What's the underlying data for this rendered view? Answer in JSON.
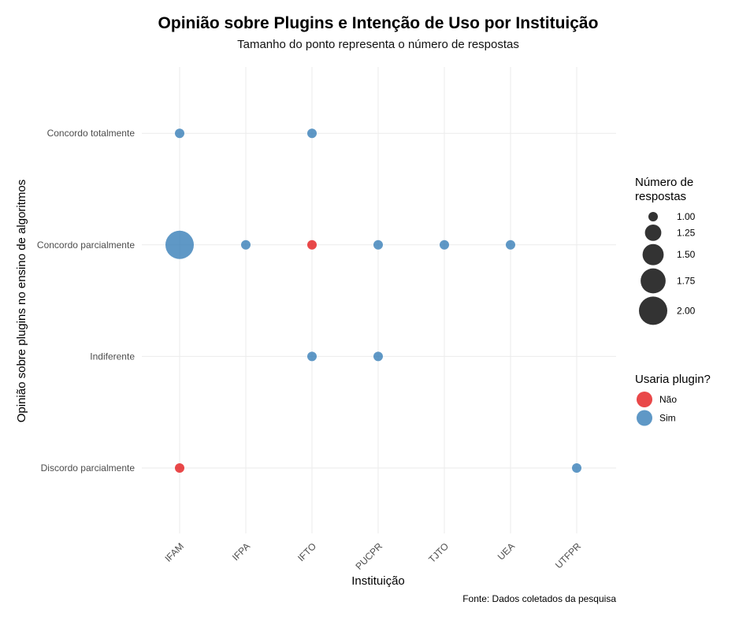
{
  "chart_data": {
    "type": "scatter",
    "title": "Opinião sobre Plugins e Intenção de Uso por Instituição",
    "subtitle": "Tamanho do ponto representa o número de respostas",
    "xlabel": "Instituição",
    "ylabel": "Opinião sobre plugins no ensino de algoritmos",
    "caption": "Fonte: Dados coletados da pesquisa",
    "grid": true,
    "x_categories": [
      "IFAM",
      "IFPA",
      "IFTO",
      "PUCPR",
      "TJTO",
      "UEA",
      "UTFPR"
    ],
    "y_categories": [
      "Discordo parcialmente",
      "Indiferente",
      "Concordo parcialmente",
      "Concordo totalmente"
    ],
    "points": [
      {
        "x": "IFAM",
        "y": "Concordo totalmente",
        "n": 1,
        "group": "Sim"
      },
      {
        "x": "IFTO",
        "y": "Concordo totalmente",
        "n": 1,
        "group": "Sim"
      },
      {
        "x": "IFAM",
        "y": "Concordo parcialmente",
        "n": 2,
        "group": "Sim"
      },
      {
        "x": "IFPA",
        "y": "Concordo parcialmente",
        "n": 1,
        "group": "Sim"
      },
      {
        "x": "IFTO",
        "y": "Concordo parcialmente",
        "n": 1,
        "group": "Não"
      },
      {
        "x": "PUCPR",
        "y": "Concordo parcialmente",
        "n": 1,
        "group": "Sim"
      },
      {
        "x": "TJTO",
        "y": "Concordo parcialmente",
        "n": 1,
        "group": "Sim"
      },
      {
        "x": "UEA",
        "y": "Concordo parcialmente",
        "n": 1,
        "group": "Sim"
      },
      {
        "x": "IFTO",
        "y": "Indiferente",
        "n": 1,
        "group": "Sim"
      },
      {
        "x": "PUCPR",
        "y": "Indiferente",
        "n": 1,
        "group": "Sim"
      },
      {
        "x": "IFAM",
        "y": "Discordo parcialmente",
        "n": 1,
        "group": "Não"
      },
      {
        "x": "UTFPR",
        "y": "Discordo parcialmente",
        "n": 1,
        "group": "Sim"
      }
    ],
    "size_legend": {
      "title": "Número de respostas",
      "values": [
        1.0,
        1.25,
        1.5,
        1.75,
        2.0
      ],
      "labels": [
        "1.00",
        "1.25",
        "1.50",
        "1.75",
        "2.00"
      ]
    },
    "color_legend": {
      "title": "Usaria plugin?",
      "items": [
        {
          "label": "Não",
          "color": "#e41a1c"
        },
        {
          "label": "Sim",
          "color": "#377eb8"
        }
      ]
    },
    "legend_position": "right"
  }
}
